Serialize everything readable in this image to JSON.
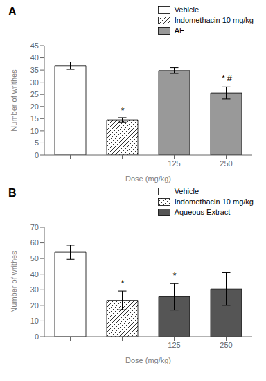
{
  "chart_data": [
    {
      "type": "bar",
      "title": "A",
      "x_label": "Dose (mg/kg)",
      "y_label": "Number of writhes",
      "categories": [
        null,
        null,
        "125",
        "250"
      ],
      "series": [
        {
          "name": "Vehicle",
          "color": "white",
          "values": [
            36.8,
            null,
            null,
            null
          ],
          "errors": [
            1.5,
            null,
            null,
            null
          ]
        },
        {
          "name": "Indomethacin 10 mg/kg",
          "color": "white",
          "line_style": "hatch",
          "values": [
            null,
            14.5,
            null,
            null
          ],
          "errors": [
            null,
            0.9,
            null,
            null
          ]
        },
        {
          "name": "AE",
          "color": "#999999",
          "values": [
            null,
            null,
            34.8,
            25.6
          ],
          "errors": [
            null,
            null,
            1.2,
            2.5
          ]
        }
      ],
      "annotations": [
        {
          "text": "*",
          "category": 1,
          "y": 16.2
        },
        {
          "text": "*",
          "category": 3,
          "y": 29.5
        },
        {
          "text": "#",
          "category": 3,
          "y": 29.5
        }
      ],
      "ylim": [
        0,
        45
      ],
      "yticks": [
        0,
        5,
        10,
        15,
        20,
        25,
        30,
        35,
        40,
        45
      ],
      "grid": false,
      "legend": "upper right"
    },
    {
      "type": "bar",
      "title": "B",
      "x_label": "Dose (mg/kg)",
      "y_label": "Number of writhes",
      "categories": [
        null,
        null,
        "125",
        "250"
      ],
      "series": [
        {
          "name": "Vehicle",
          "color": "white",
          "values": [
            54.0,
            null,
            null,
            null
          ],
          "errors": [
            4.5,
            null,
            null,
            null
          ]
        },
        {
          "name": "Indomethacin 10 mg/kg",
          "color": "white",
          "line_style": "hatch",
          "values": [
            null,
            23.2,
            null,
            null
          ],
          "errors": [
            null,
            6.0,
            null,
            null
          ]
        },
        {
          "name": "Aqueous Extract",
          "color": "#555555",
          "values": [
            null,
            null,
            25.5,
            30.5
          ],
          "errors": [
            null,
            null,
            8.5,
            10.5
          ]
        }
      ],
      "annotations": [
        {
          "text": "*",
          "category": 1,
          "y": 31.0
        },
        {
          "text": "*",
          "category": 2,
          "y": 36.0
        }
      ],
      "ylim": [
        0,
        70
      ],
      "yticks": [
        0,
        10,
        20,
        30,
        40,
        50,
        60,
        70
      ],
      "grid": false,
      "legend": "upper right"
    }
  ]
}
